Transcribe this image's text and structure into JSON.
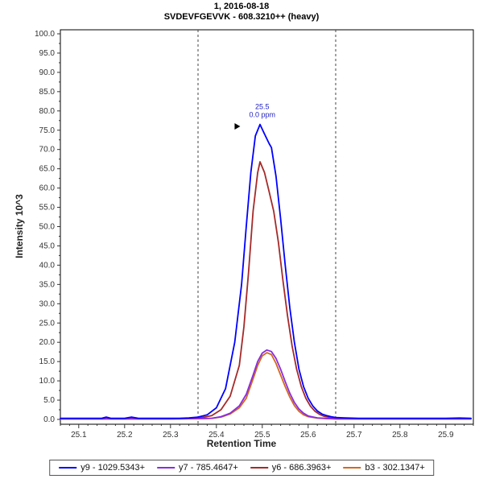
{
  "titles": {
    "line1": "1, 2016-08-18",
    "line2": "SVDEVFGEVVK - 608.3210++ (heavy)"
  },
  "chart_data": {
    "type": "line",
    "title": "SVDEVFGEVVK - 608.3210++ (heavy)",
    "subtitle": "1, 2016-08-18",
    "xlabel": "Retention Time",
    "ylabel": "Intensity 10^3",
    "xlim": [
      25.06,
      25.96
    ],
    "ylim": [
      0,
      100
    ],
    "x_ticks": {
      "major_start": 25.1,
      "major_end": 25.9,
      "major_step": 0.1,
      "minor_step": 0.02
    },
    "y_ticks": {
      "major_step": 5,
      "minor_step": 2.5
    },
    "grid": false,
    "legend_position": "bottom",
    "integration_boundaries": [
      25.36,
      25.66
    ],
    "annotation": {
      "x": 25.5,
      "y": 80.5,
      "lines": [
        "25.5",
        "0.0 ppm"
      ],
      "color": "#2020c0",
      "arrow": {
        "x": 25.452,
        "y": 76.0
      }
    },
    "series": [
      {
        "name": "y9",
        "legend_label": "y9 - 1029.5343+",
        "color": "#0000FF",
        "points": [
          [
            25.06,
            0.3
          ],
          [
            25.09,
            0.3
          ],
          [
            25.12,
            0.3
          ],
          [
            25.15,
            0.3
          ],
          [
            25.16,
            0.6
          ],
          [
            25.17,
            0.3
          ],
          [
            25.2,
            0.3
          ],
          [
            25.215,
            0.6
          ],
          [
            25.23,
            0.3
          ],
          [
            25.26,
            0.3
          ],
          [
            25.29,
            0.3
          ],
          [
            25.32,
            0.3
          ],
          [
            25.34,
            0.4
          ],
          [
            25.36,
            0.6
          ],
          [
            25.38,
            1.2
          ],
          [
            25.4,
            3
          ],
          [
            25.42,
            8
          ],
          [
            25.44,
            20
          ],
          [
            25.455,
            35
          ],
          [
            25.465,
            50
          ],
          [
            25.475,
            64
          ],
          [
            25.485,
            73.5
          ],
          [
            25.495,
            76.5
          ],
          [
            25.505,
            74
          ],
          [
            25.515,
            71.5
          ],
          [
            25.52,
            70.5
          ],
          [
            25.53,
            63
          ],
          [
            25.54,
            52
          ],
          [
            25.55,
            40
          ],
          [
            25.56,
            29
          ],
          [
            25.57,
            20
          ],
          [
            25.58,
            13
          ],
          [
            25.59,
            8.5
          ],
          [
            25.6,
            5.5
          ],
          [
            25.61,
            3.5
          ],
          [
            25.62,
            2.2
          ],
          [
            25.63,
            1.4
          ],
          [
            25.64,
            1.0
          ],
          [
            25.65,
            0.7
          ],
          [
            25.66,
            0.5
          ],
          [
            25.68,
            0.4
          ],
          [
            25.71,
            0.3
          ],
          [
            25.75,
            0.3
          ],
          [
            25.8,
            0.3
          ],
          [
            25.85,
            0.3
          ],
          [
            25.9,
            0.3
          ],
          [
            25.93,
            0.35
          ],
          [
            25.955,
            0.3
          ]
        ]
      },
      {
        "name": "y7",
        "legend_label": "y7 - 785.4647+",
        "color": "#8A2BE2",
        "points": [
          [
            25.06,
            0.15
          ],
          [
            25.14,
            0.15
          ],
          [
            25.22,
            0.15
          ],
          [
            25.3,
            0.15
          ],
          [
            25.36,
            0.2
          ],
          [
            25.39,
            0.3
          ],
          [
            25.41,
            0.7
          ],
          [
            25.43,
            1.6
          ],
          [
            25.45,
            3.5
          ],
          [
            25.465,
            6.5
          ],
          [
            25.48,
            11.5
          ],
          [
            25.49,
            15
          ],
          [
            25.5,
            17.2
          ],
          [
            25.51,
            18
          ],
          [
            25.52,
            17.6
          ],
          [
            25.53,
            15.8
          ],
          [
            25.54,
            13
          ],
          [
            25.55,
            9.8
          ],
          [
            25.56,
            6.8
          ],
          [
            25.57,
            4.4
          ],
          [
            25.58,
            2.7
          ],
          [
            25.59,
            1.6
          ],
          [
            25.6,
            0.9
          ],
          [
            25.62,
            0.4
          ],
          [
            25.64,
            0.25
          ],
          [
            25.66,
            0.15
          ],
          [
            25.72,
            0.15
          ],
          [
            25.8,
            0.15
          ],
          [
            25.88,
            0.15
          ],
          [
            25.955,
            0.15
          ]
        ]
      },
      {
        "name": "y6",
        "legend_label": "y6 - 686.3963+",
        "color": "#A52A2A",
        "points": [
          [
            25.06,
            0.2
          ],
          [
            25.12,
            0.2
          ],
          [
            25.18,
            0.2
          ],
          [
            25.24,
            0.2
          ],
          [
            25.3,
            0.2
          ],
          [
            25.34,
            0.3
          ],
          [
            25.37,
            0.5
          ],
          [
            25.39,
            1
          ],
          [
            25.41,
            2.5
          ],
          [
            25.43,
            6
          ],
          [
            25.45,
            14
          ],
          [
            25.46,
            24
          ],
          [
            25.47,
            38
          ],
          [
            25.48,
            54
          ],
          [
            25.49,
            64
          ],
          [
            25.495,
            66.8
          ],
          [
            25.505,
            64
          ],
          [
            25.515,
            59
          ],
          [
            25.525,
            54
          ],
          [
            25.535,
            46
          ],
          [
            25.545,
            36
          ],
          [
            25.555,
            27
          ],
          [
            25.565,
            19
          ],
          [
            25.575,
            13
          ],
          [
            25.585,
            8.5
          ],
          [
            25.595,
            5.5
          ],
          [
            25.605,
            3.4
          ],
          [
            25.615,
            2.1
          ],
          [
            25.625,
            1.3
          ],
          [
            25.635,
            0.8
          ],
          [
            25.65,
            0.5
          ],
          [
            25.66,
            0.3
          ],
          [
            25.7,
            0.2
          ],
          [
            25.76,
            0.2
          ],
          [
            25.82,
            0.2
          ],
          [
            25.88,
            0.2
          ],
          [
            25.955,
            0.2
          ]
        ]
      },
      {
        "name": "b3",
        "legend_label": "b3 - 302.1347+",
        "color": "#D2691E",
        "points": [
          [
            25.06,
            0.15
          ],
          [
            25.14,
            0.15
          ],
          [
            25.22,
            0.15
          ],
          [
            25.3,
            0.15
          ],
          [
            25.36,
            0.2
          ],
          [
            25.39,
            0.3
          ],
          [
            25.41,
            0.6
          ],
          [
            25.43,
            1.4
          ],
          [
            25.45,
            3
          ],
          [
            25.465,
            5.5
          ],
          [
            25.48,
            10.5
          ],
          [
            25.49,
            14
          ],
          [
            25.5,
            16.5
          ],
          [
            25.51,
            17.3
          ],
          [
            25.52,
            16.8
          ],
          [
            25.53,
            14.5
          ],
          [
            25.54,
            11.5
          ],
          [
            25.55,
            8.5
          ],
          [
            25.56,
            5.8
          ],
          [
            25.57,
            3.6
          ],
          [
            25.58,
            2.1
          ],
          [
            25.59,
            1.2
          ],
          [
            25.6,
            0.7
          ],
          [
            25.62,
            0.35
          ],
          [
            25.64,
            0.2
          ],
          [
            25.66,
            0.15
          ],
          [
            25.72,
            0.15
          ],
          [
            25.8,
            0.15
          ],
          [
            25.88,
            0.15
          ],
          [
            25.955,
            0.15
          ]
        ]
      }
    ],
    "style": {
      "boundary_color": "#444444",
      "tick_label_color": "#333333",
      "plot_border_color": "#000000"
    }
  }
}
